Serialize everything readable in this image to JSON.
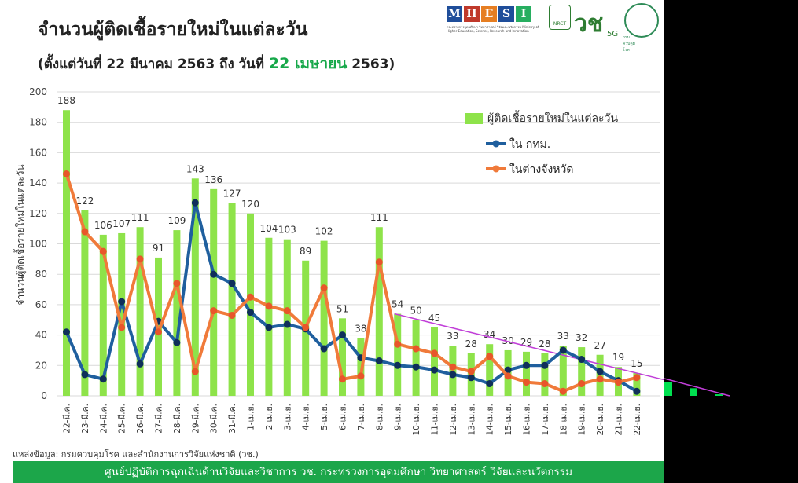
{
  "header": {
    "title": "จำนวนผู้ติดเชื้อรายใหม่ในแต่ละวัน",
    "subtitle_pre": "(ตั้งแต่วันที่ 22 มีนาคม 2563 ถึง วันที่ ",
    "subtitle_highlight": "22 เมษายน",
    "subtitle_post": " 2563)"
  },
  "logos": {
    "mhesi_letters": [
      "M",
      "H",
      "E",
      "S",
      "I"
    ],
    "mhesi_colors": [
      "#1f4e9a",
      "#c0392b",
      "#e67e22",
      "#1f4e9a",
      "#27ae60"
    ],
    "mhesi_caption": "กระทรวงการอุดมศึกษา วิทยาศาสตร์ วิจัยและนวัตกรรม Ministry of Higher Education, Science, Research and Innovation",
    "nrct_label": "NRCT",
    "vor_label": "วช",
    "fiveg_label": "5G",
    "ddc_label": "กรมควบคุมโรค"
  },
  "source": "แหล่งข้อมูล: กรมควบคุมโรค และสำนักงานการวิจัยแห่งชาติ (วช.)",
  "footer": "ศูนย์ปฏิบัติการฉุกเฉินด้านวิจัยและวิชาการ    วช.   กระทรวงการอุดมศึกษา วิทยาศาสตร์ วิจัยและนวัตกรรม",
  "chart_data": {
    "type": "bar",
    "ylabel": "จำนวนผู้ติดเชื้อรายใหม่ในแต่ละวัน",
    "ylim": [
      0,
      200
    ],
    "yticks": [
      0,
      20,
      40,
      60,
      80,
      100,
      120,
      140,
      160,
      180,
      200
    ],
    "grid": true,
    "legend_position": "top-right",
    "categories": [
      "22-มี.ค.",
      "23-มี.ค.",
      "24-มี.ค.",
      "25-มี.ค.",
      "26-มี.ค.",
      "27-มี.ค.",
      "28-มี.ค.",
      "29-มี.ค.",
      "30-มี.ค.",
      "31-มี.ค.",
      "1-เม.ย.",
      "2 เม.ย.",
      "3-เม.ย.",
      "4-เม.ย.",
      "5-เม.ย.",
      "6-เม.ย.",
      "7-เม.ย.",
      "8-เม.ย.",
      "9-เม.ย.",
      "10-เม.ย.",
      "11-เม.ย.",
      "12-เม.ย.",
      "13-เม.ย.",
      "14-เม.ย.",
      "15-เม.ย.",
      "16-เม.ย.",
      "17-เม.ย.",
      "18-เม.ย.",
      "19-เม.ย.",
      "20-เม.ย.",
      "21-เม.ย.",
      "22-เม.ย."
    ],
    "series": [
      {
        "name": "ผู้ติดเชื้อรายใหม่ในแต่ละวัน",
        "type": "bar",
        "color": "#8ee34a",
        "values": [
          188,
          122,
          106,
          107,
          111,
          91,
          109,
          143,
          136,
          127,
          120,
          104,
          103,
          89,
          102,
          51,
          38,
          111,
          54,
          50,
          45,
          33,
          28,
          34,
          30,
          29,
          28,
          33,
          32,
          27,
          19,
          15
        ]
      },
      {
        "name": "ใน กทม.",
        "type": "line",
        "color": "#1f5f9e",
        "values": [
          42,
          14,
          11,
          62,
          21,
          49,
          35,
          127,
          80,
          74,
          55,
          45,
          47,
          44,
          31,
          40,
          25,
          23,
          20,
          19,
          17,
          14,
          12,
          8,
          17,
          20,
          20,
          30,
          24,
          16,
          10,
          3
        ]
      },
      {
        "name": "ในต่างจังหวัด",
        "type": "line",
        "color": "#f07a3a",
        "values": [
          146,
          108,
          95,
          45,
          90,
          42,
          74,
          16,
          56,
          53,
          65,
          59,
          56,
          45,
          71,
          11,
          13,
          88,
          34,
          31,
          28,
          19,
          16,
          26,
          13,
          9,
          8,
          3,
          8,
          11,
          9,
          12
        ]
      }
    ],
    "trendline": {
      "color": "#c13fd8",
      "from_category": "9-เม.ย.",
      "from_value": 54,
      "to_value": 0
    },
    "offscreen_bars": {
      "color": "#00e050",
      "values": [
        9,
        5,
        1
      ]
    }
  }
}
